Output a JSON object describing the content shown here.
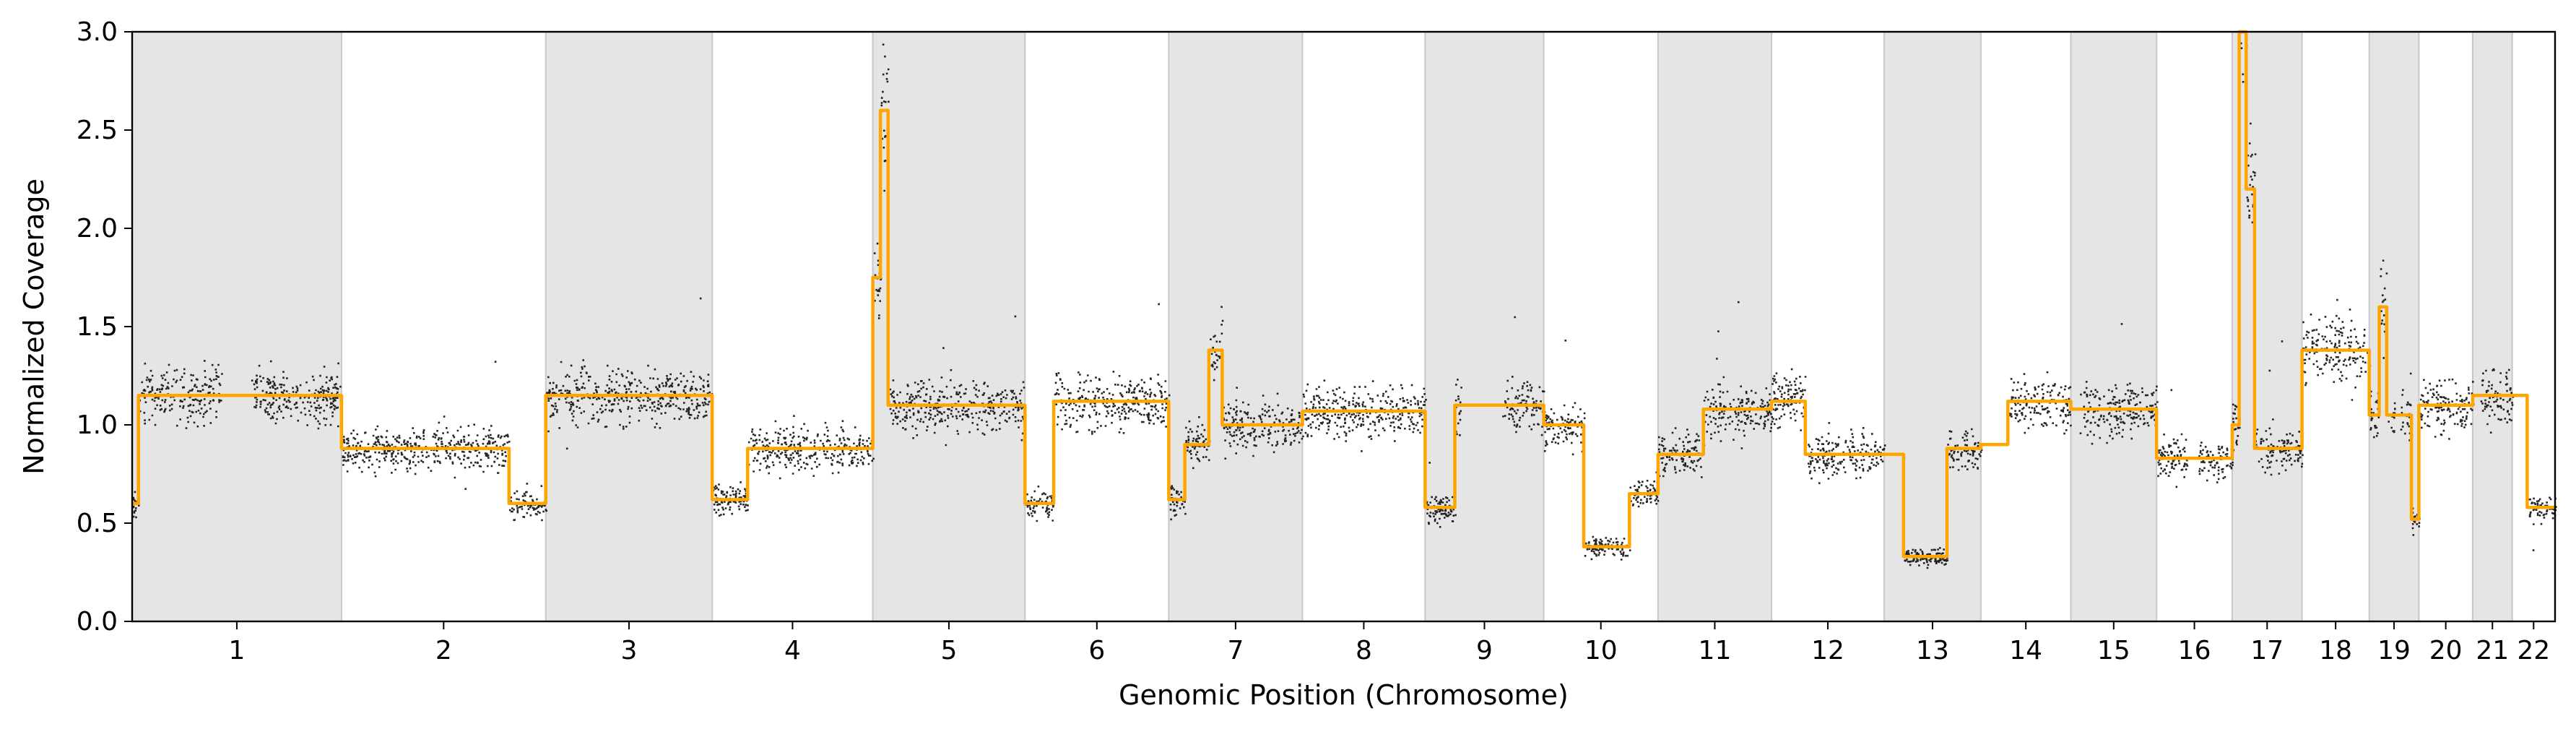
{
  "chart_data": {
    "type": "scatter",
    "title": "",
    "xlabel": "Genomic Position (Chromosome)",
    "ylabel": "Normalized Coverage",
    "ylim": [
      0,
      3.0
    ],
    "yticks": [
      "0.0",
      "0.5",
      "1.0",
      "1.5",
      "2.0",
      "2.5",
      "3.0"
    ],
    "grid": false,
    "legend": "none",
    "shading": "alternate chromosomes shaded light gray",
    "colors": {
      "points": "#000000",
      "segments": "#FFA500",
      "shade": "#E5E5E5"
    },
    "chromosomes": [
      {
        "label": "1",
        "length": 249,
        "shaded": true,
        "segments": [
          {
            "start": 0.0,
            "end": 0.03,
            "value": 0.6
          },
          {
            "start": 0.03,
            "end": 1.0,
            "value": 1.15
          }
        ],
        "gaps": [
          [
            0.43,
            0.56
          ]
        ]
      },
      {
        "label": "2",
        "length": 243,
        "shaded": false,
        "segments": [
          {
            "start": 0.0,
            "end": 0.82,
            "value": 0.88
          },
          {
            "start": 0.82,
            "end": 1.0,
            "value": 0.6
          }
        ],
        "gaps": []
      },
      {
        "label": "3",
        "length": 198,
        "shaded": true,
        "segments": [
          {
            "start": 0.0,
            "end": 1.0,
            "value": 1.15
          }
        ],
        "gaps": []
      },
      {
        "label": "4",
        "length": 191,
        "shaded": false,
        "segments": [
          {
            "start": 0.0,
            "end": 0.22,
            "value": 0.62
          },
          {
            "start": 0.22,
            "end": 1.0,
            "value": 0.88
          }
        ],
        "gaps": []
      },
      {
        "label": "5",
        "length": 181,
        "shaded": true,
        "segments": [
          {
            "start": 0.0,
            "end": 0.05,
            "value": 1.75
          },
          {
            "start": 0.05,
            "end": 0.1,
            "value": 2.6
          },
          {
            "start": 0.1,
            "end": 1.0,
            "value": 1.1
          }
        ],
        "gaps": []
      },
      {
        "label": "6",
        "length": 171,
        "shaded": false,
        "segments": [
          {
            "start": 0.0,
            "end": 0.2,
            "value": 0.6
          },
          {
            "start": 0.2,
            "end": 1.0,
            "value": 1.12
          }
        ],
        "gaps": []
      },
      {
        "label": "7",
        "length": 159,
        "shaded": true,
        "segments": [
          {
            "start": 0.0,
            "end": 0.12,
            "value": 0.62
          },
          {
            "start": 0.12,
            "end": 0.3,
            "value": 0.9
          },
          {
            "start": 0.3,
            "end": 0.4,
            "value": 1.38
          },
          {
            "start": 0.4,
            "end": 1.0,
            "value": 1.0
          }
        ],
        "gaps": []
      },
      {
        "label": "8",
        "length": 146,
        "shaded": false,
        "segments": [
          {
            "start": 0.0,
            "end": 1.0,
            "value": 1.07
          }
        ],
        "gaps": []
      },
      {
        "label": "9",
        "length": 141,
        "shaded": true,
        "segments": [
          {
            "start": 0.0,
            "end": 0.25,
            "value": 0.58
          },
          {
            "start": 0.25,
            "end": 1.0,
            "value": 1.1
          }
        ],
        "gaps": [
          [
            0.3,
            0.65
          ]
        ]
      },
      {
        "label": "10",
        "length": 136,
        "shaded": false,
        "segments": [
          {
            "start": 0.0,
            "end": 0.35,
            "value": 1.0
          },
          {
            "start": 0.35,
            "end": 0.75,
            "value": 0.38
          },
          {
            "start": 0.75,
            "end": 1.0,
            "value": 0.65
          }
        ],
        "gaps": []
      },
      {
        "label": "11",
        "length": 135,
        "shaded": true,
        "segments": [
          {
            "start": 0.0,
            "end": 0.4,
            "value": 0.85
          },
          {
            "start": 0.4,
            "end": 1.0,
            "value": 1.08
          }
        ],
        "gaps": []
      },
      {
        "label": "12",
        "length": 134,
        "shaded": false,
        "segments": [
          {
            "start": 0.0,
            "end": 0.3,
            "value": 1.12
          },
          {
            "start": 0.3,
            "end": 1.0,
            "value": 0.85
          }
        ],
        "gaps": []
      },
      {
        "label": "13",
        "length": 115,
        "shaded": true,
        "segments": [
          {
            "start": 0.0,
            "end": 0.2,
            "value": 0.85
          },
          {
            "start": 0.2,
            "end": 0.65,
            "value": 0.33
          },
          {
            "start": 0.65,
            "end": 1.0,
            "value": 0.88
          }
        ],
        "gaps": [
          [
            0.0,
            0.18
          ]
        ]
      },
      {
        "label": "14",
        "length": 107,
        "shaded": false,
        "segments": [
          {
            "start": 0.0,
            "end": 0.3,
            "value": 0.9
          },
          {
            "start": 0.3,
            "end": 1.0,
            "value": 1.12
          }
        ],
        "gaps": [
          [
            0.0,
            0.3
          ]
        ]
      },
      {
        "label": "15",
        "length": 102,
        "shaded": true,
        "segments": [
          {
            "start": 0.0,
            "end": 1.0,
            "value": 1.08
          }
        ],
        "gaps": [
          [
            0.0,
            0.1
          ]
        ]
      },
      {
        "label": "16",
        "length": 90,
        "shaded": false,
        "segments": [
          {
            "start": 0.0,
            "end": 1.0,
            "value": 0.83
          }
        ],
        "gaps": [
          [
            0.4,
            0.55
          ]
        ]
      },
      {
        "label": "17",
        "length": 83,
        "shaded": true,
        "segments": [
          {
            "start": 0.0,
            "end": 0.1,
            "value": 1.0
          },
          {
            "start": 0.1,
            "end": 0.2,
            "value": 3.0
          },
          {
            "start": 0.2,
            "end": 0.32,
            "value": 2.2
          },
          {
            "start": 0.32,
            "end": 1.0,
            "value": 0.88
          }
        ],
        "gaps": []
      },
      {
        "label": "18",
        "length": 80,
        "shaded": false,
        "segments": [
          {
            "start": 0.0,
            "end": 1.0,
            "value": 1.38
          }
        ],
        "gaps": []
      },
      {
        "label": "19",
        "length": 59,
        "shaded": true,
        "segments": [
          {
            "start": 0.0,
            "end": 0.2,
            "value": 1.05
          },
          {
            "start": 0.2,
            "end": 0.35,
            "value": 1.6
          },
          {
            "start": 0.35,
            "end": 0.85,
            "value": 1.05
          },
          {
            "start": 0.85,
            "end": 1.0,
            "value": 0.52
          }
        ],
        "gaps": [
          [
            0.5,
            0.6
          ]
        ]
      },
      {
        "label": "20",
        "length": 64,
        "shaded": false,
        "segments": [
          {
            "start": 0.0,
            "end": 1.0,
            "value": 1.1
          }
        ],
        "gaps": []
      },
      {
        "label": "21",
        "length": 47,
        "shaded": true,
        "segments": [
          {
            "start": 0.0,
            "end": 1.0,
            "value": 1.15
          }
        ],
        "gaps": [
          [
            0.0,
            0.15
          ]
        ]
      },
      {
        "label": "22",
        "length": 51,
        "shaded": false,
        "segments": [
          {
            "start": 0.0,
            "end": 0.35,
            "value": 1.15
          },
          {
            "start": 0.35,
            "end": 1.0,
            "value": 0.58
          }
        ],
        "gaps": [
          [
            0.0,
            0.35
          ]
        ]
      }
    ]
  }
}
